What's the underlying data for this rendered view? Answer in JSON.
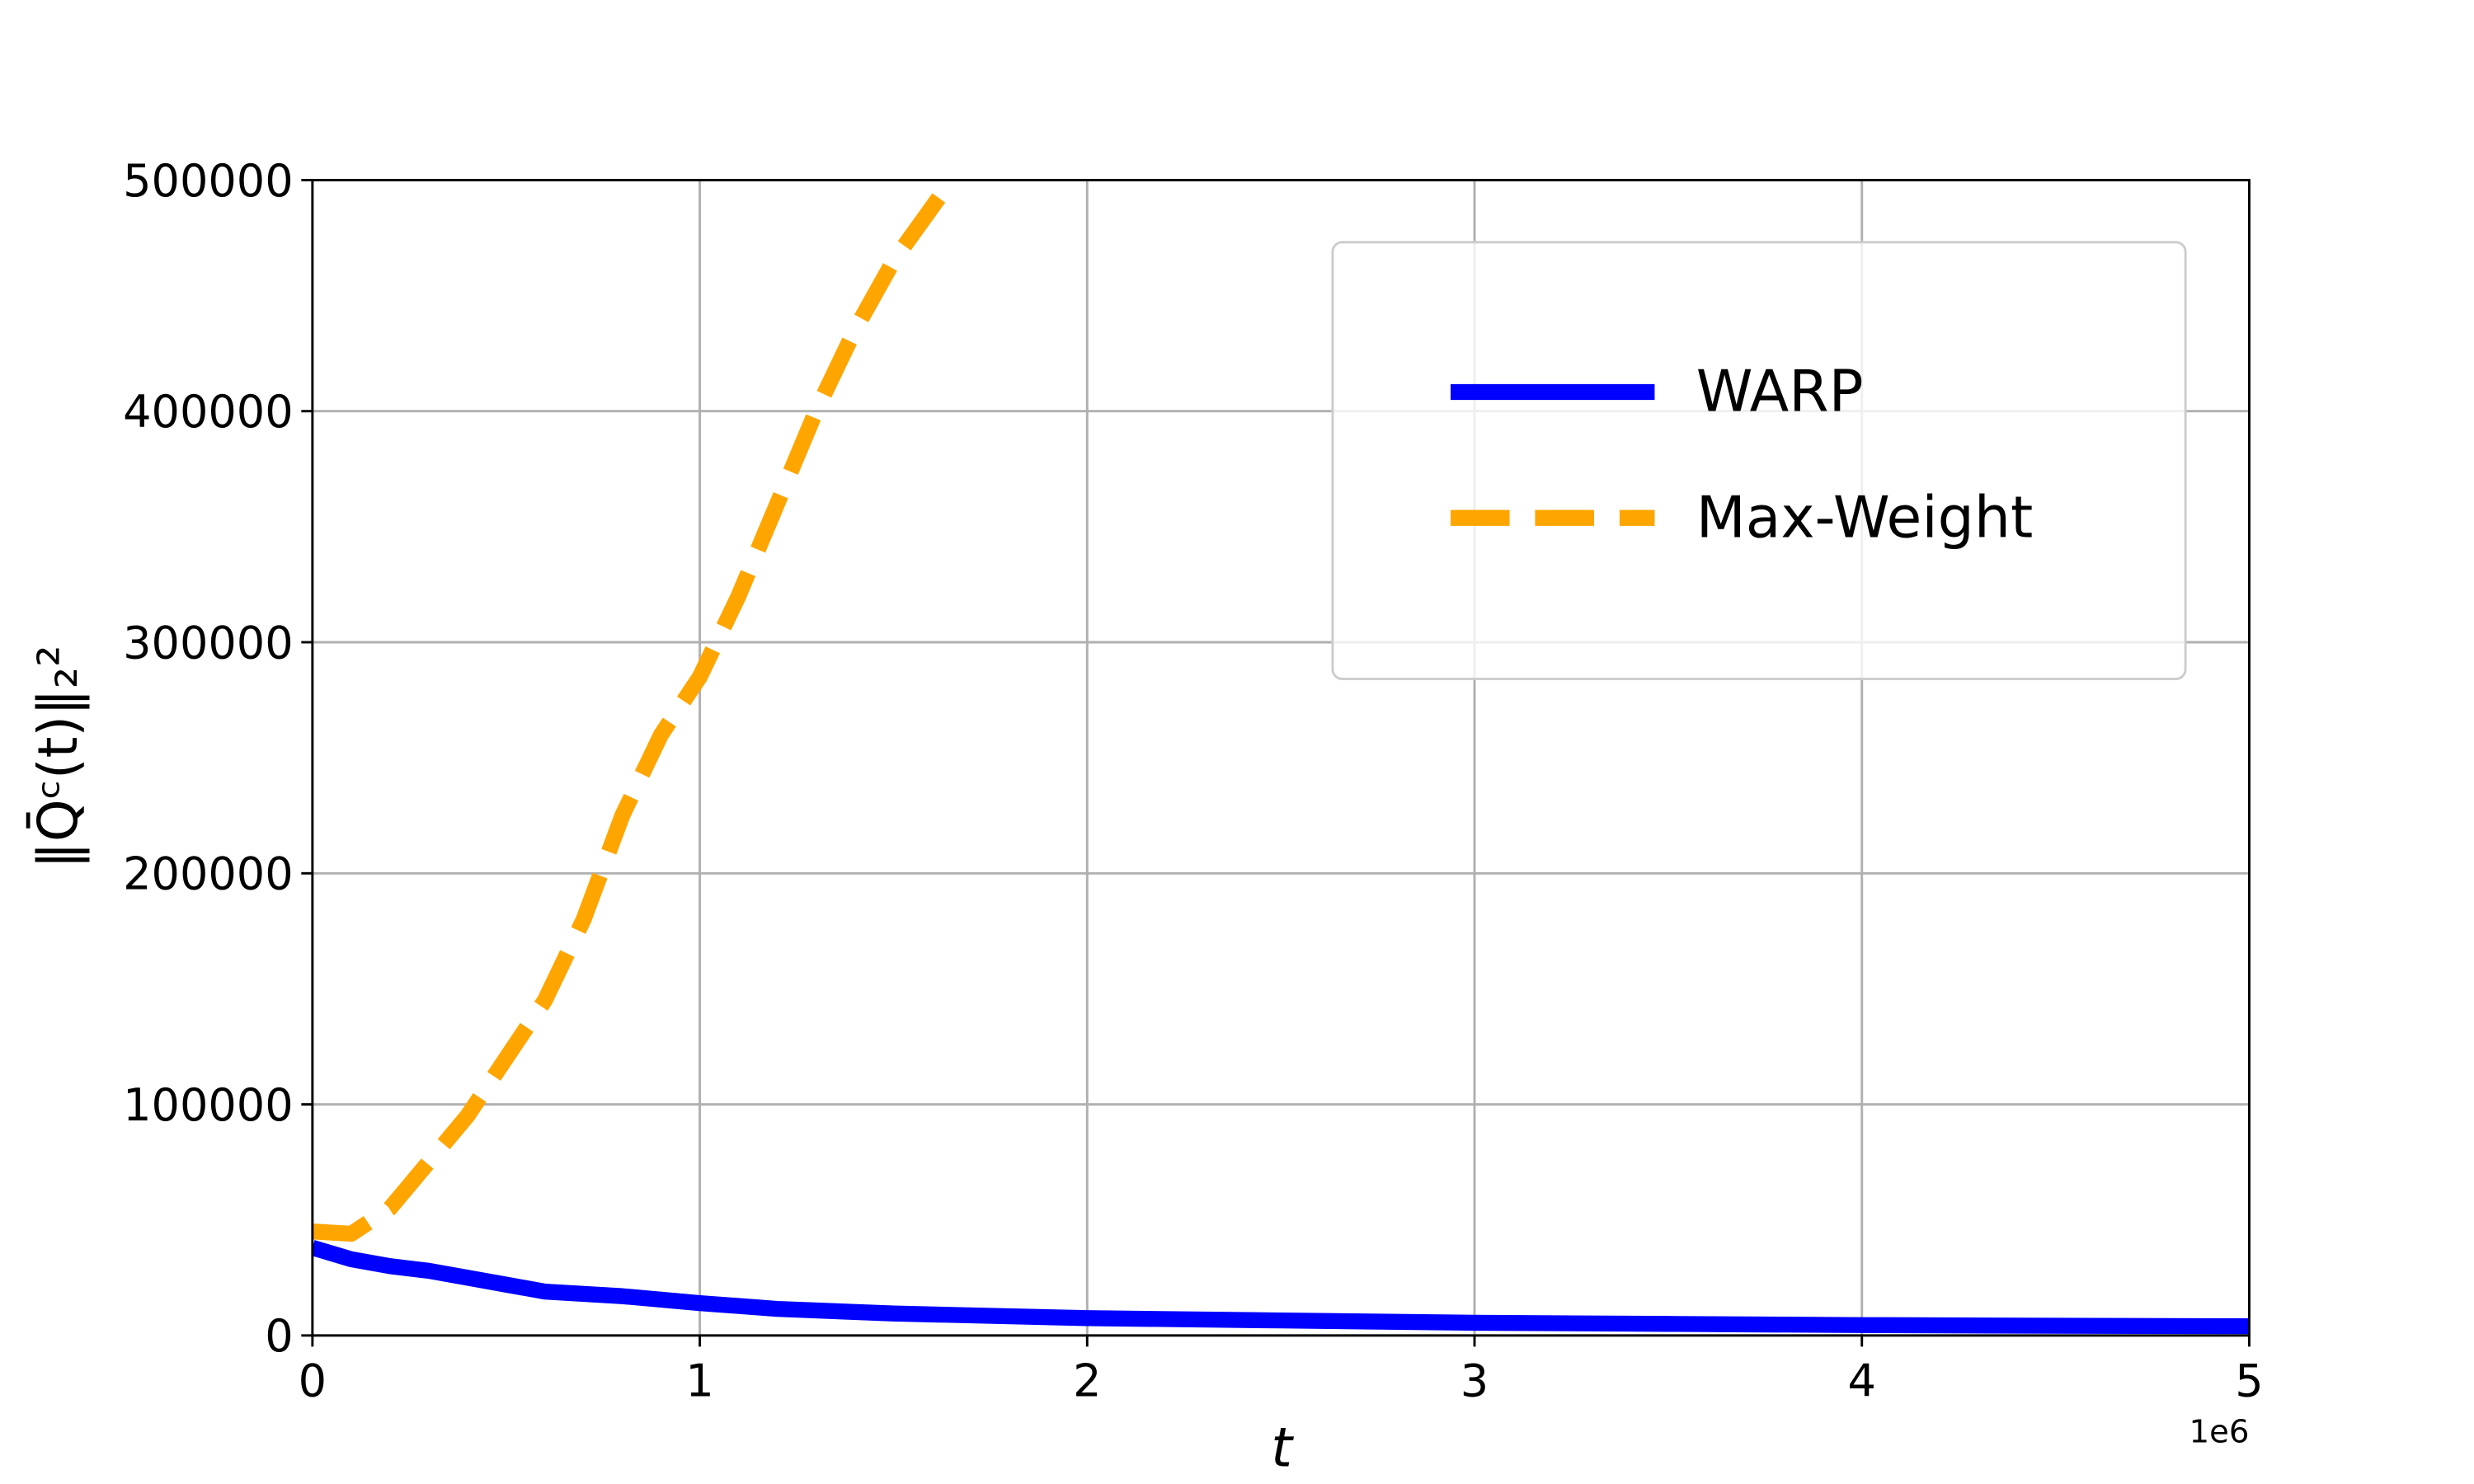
{
  "chart_data": {
    "type": "line",
    "xlabel": "t",
    "ylabel": "‖Q̄ᶜ(t)‖₂²",
    "x_offset_label": "1e6",
    "xlim": [
      0,
      5
    ],
    "xticks": [
      0,
      1,
      2,
      3,
      4,
      5
    ],
    "ylim": [
      0,
      500000
    ],
    "yticks": [
      0,
      100000,
      200000,
      300000,
      400000,
      500000
    ],
    "grid": true,
    "legend_position": "upper right",
    "series": [
      {
        "name": "WARP",
        "color": "#0000ff",
        "style": "solid",
        "x": [
          0,
          0.1,
          0.2,
          0.3,
          0.4,
          0.5,
          0.6,
          0.8,
          1.0,
          1.2,
          1.5,
          2.0,
          2.5,
          3.0,
          3.5,
          4.0,
          4.5,
          5.0
        ],
        "values": [
          38000,
          33000,
          30000,
          28000,
          25000,
          22000,
          19000,
          17000,
          14000,
          11500,
          9500,
          7500,
          6500,
          5500,
          5000,
          4500,
          4200,
          4000
        ]
      },
      {
        "name": "Max-Weight",
        "color": "#ffa500",
        "style": "dashed",
        "x": [
          0,
          0.1,
          0.2,
          0.3,
          0.4,
          0.5,
          0.6,
          0.7,
          0.8,
          0.9,
          1.0,
          1.1,
          1.2,
          1.3,
          1.4,
          1.5,
          1.65
        ],
        "values": [
          45000,
          44000,
          55000,
          75000,
          95000,
          120000,
          145000,
          180000,
          225000,
          260000,
          285000,
          320000,
          360000,
          400000,
          435000,
          465000,
          500000
        ]
      }
    ]
  }
}
